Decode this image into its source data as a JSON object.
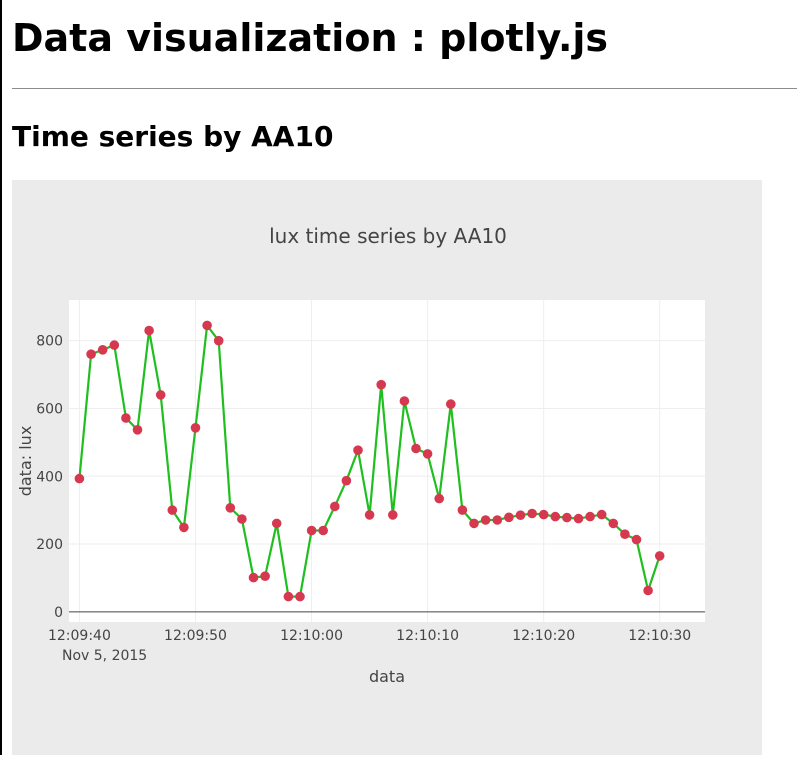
{
  "page": {
    "title": "Data visualization : plotly.js",
    "section_title": "Time series by AA10"
  },
  "colors": {
    "paper_bg": "#ebebeb",
    "plot_bg": "#ffffff",
    "line": "#1fbf1f",
    "marker": "#d6384f",
    "text": "#444444"
  },
  "chart_data": {
    "type": "line",
    "mode": "lines+markers",
    "title": "lux time series by AA10",
    "xlabel": "data",
    "ylabel": "data: lux",
    "x_tick_labels": [
      "12:09:40",
      "12:09:50",
      "12:10:00",
      "12:10:10",
      "12:10:20",
      "12:10:30"
    ],
    "x_tick_values": [
      "12:09:40",
      "12:09:50",
      "12:10:00",
      "12:10:10",
      "12:10:20",
      "12:10:30"
    ],
    "x_date_label": "Nov 5, 2015",
    "xlim": [
      "12:09:39.1",
      "12:10:33.9"
    ],
    "y_ticks": [
      0,
      200,
      400,
      600,
      800
    ],
    "ylim": [
      -30,
      920
    ],
    "grid": true,
    "legend": "none",
    "series": [
      {
        "x": [
          "12:09:40",
          "12:09:41",
          "12:09:42",
          "12:09:43",
          "12:09:44",
          "12:09:45",
          "12:09:46",
          "12:09:47",
          "12:09:48",
          "12:09:49",
          "12:09:50",
          "12:09:51",
          "12:09:52",
          "12:09:53",
          "12:09:54",
          "12:09:55",
          "12:09:56",
          "12:09:57",
          "12:09:58",
          "12:09:59",
          "12:10:00",
          "12:10:01",
          "12:10:02",
          "12:10:03",
          "12:10:04",
          "12:10:05",
          "12:10:06",
          "12:10:07",
          "12:10:08",
          "12:10:09",
          "12:10:10",
          "12:10:11",
          "12:10:12",
          "12:10:13",
          "12:10:14",
          "12:10:15",
          "12:10:16",
          "12:10:17",
          "12:10:18",
          "12:10:19",
          "12:10:20",
          "12:10:21",
          "12:10:22",
          "12:10:23",
          "12:10:24",
          "12:10:25",
          "12:10:26",
          "12:10:27",
          "12:10:28",
          "12:10:29",
          "12:10:30"
        ],
        "y": [
          393,
          760,
          773,
          787,
          572,
          537,
          830,
          640,
          300,
          249,
          543,
          845,
          800,
          307,
          274,
          101,
          105,
          261,
          45,
          45,
          240,
          240,
          311,
          387,
          477,
          286,
          670,
          286,
          622,
          482,
          466,
          334,
          613,
          300,
          261,
          271,
          271,
          279,
          285,
          290,
          287,
          281,
          278,
          275,
          281,
          287,
          261,
          229,
          213,
          63,
          165
        ]
      }
    ]
  }
}
